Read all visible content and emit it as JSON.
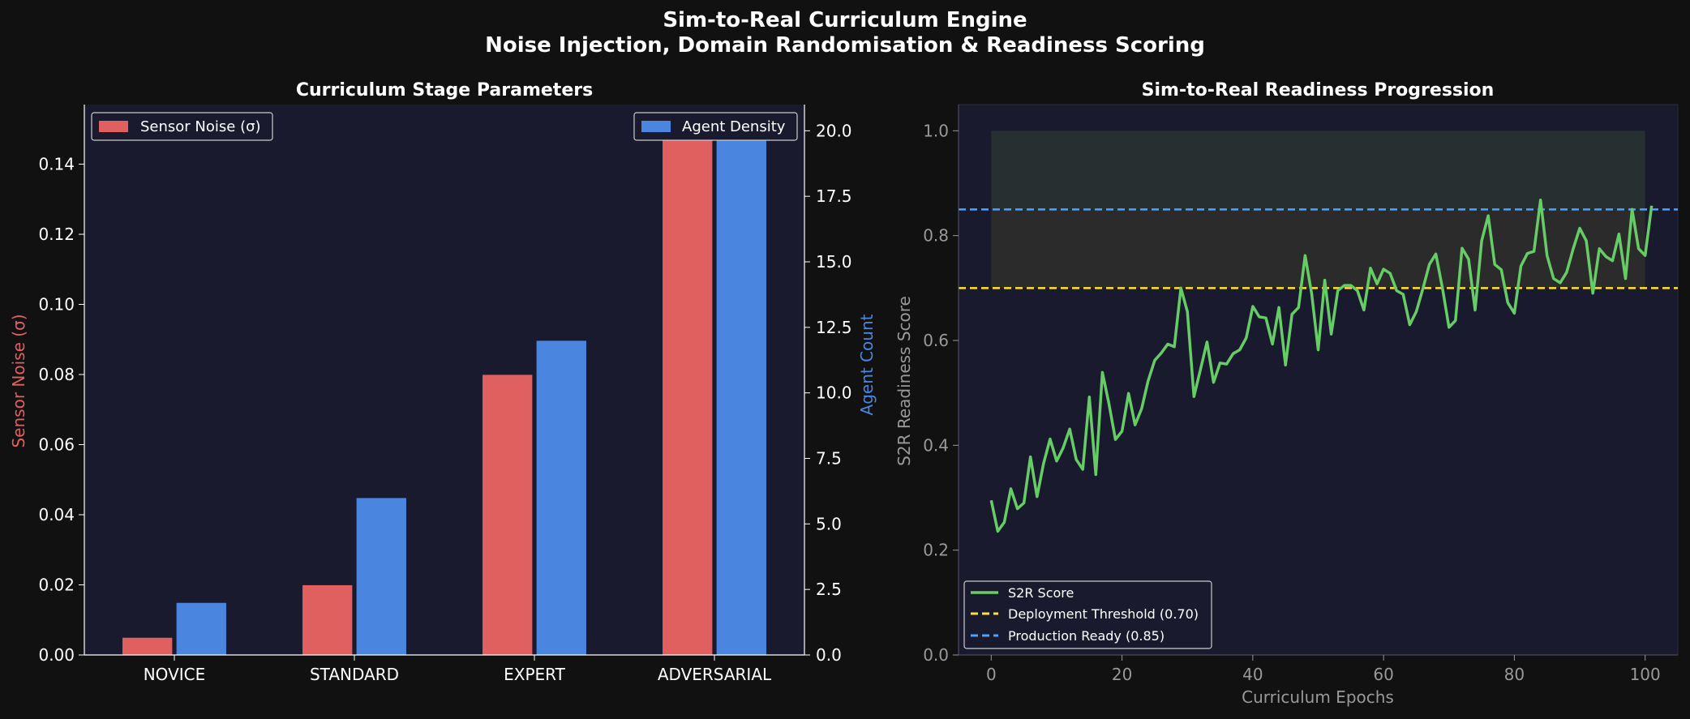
{
  "figure": {
    "title_line1": "Sim-to-Real Curriculum Engine",
    "title_line2": "Noise Injection, Domain Randomisation & Readiness Scoring"
  },
  "colors": {
    "background": "#111111",
    "panel": "#1a1a2e",
    "noise": "#e06060",
    "density": "#4a86e0",
    "score": "#66cc66",
    "deploy": "#ffe033",
    "production": "#4aa3ff"
  },
  "chart_data": [
    {
      "type": "bar",
      "title": "Curriculum Stage Parameters",
      "categories": [
        "NOVICE",
        "STANDARD",
        "EXPERT",
        "ADVERSARIAL"
      ],
      "series": [
        {
          "name": "Sensor Noise (σ)",
          "axis": "left",
          "values": [
            0.005,
            0.02,
            0.08,
            0.15
          ]
        },
        {
          "name": "Agent Density",
          "axis": "right",
          "values": [
            2,
            6,
            12,
            20
          ]
        }
      ],
      "ylabel": "Sensor Noise (σ)",
      "ylabel_right": "Agent Count",
      "ylim": [
        0,
        0.157
      ],
      "ylim_right": [
        0,
        21
      ],
      "yticks": [
        "0.00",
        "0.02",
        "0.04",
        "0.06",
        "0.08",
        "0.10",
        "0.12",
        "0.14"
      ],
      "yticks_right": [
        "0.0",
        "2.5",
        "5.0",
        "7.5",
        "10.0",
        "12.5",
        "15.0",
        "17.5",
        "20.0"
      ],
      "legend_left": "top-left",
      "legend_right": "top-right"
    },
    {
      "type": "line",
      "title": "Sim-to-Real Readiness Progression",
      "xlabel": "Curriculum Epochs",
      "ylabel": "S2R Readiness Score",
      "xlim": [
        -5,
        105
      ],
      "ylim": [
        0,
        1.05
      ],
      "xticks": [
        "0",
        "20",
        "40",
        "60",
        "80",
        "100"
      ],
      "yticks": [
        "0.0",
        "0.2",
        "0.4",
        "0.6",
        "0.8",
        "1.0"
      ],
      "series": [
        {
          "name": "S2R Score",
          "x_start": 0,
          "x_step": 1,
          "values": [
            0.295,
            0.236,
            0.253,
            0.317,
            0.279,
            0.29,
            0.378,
            0.302,
            0.365,
            0.412,
            0.37,
            0.395,
            0.431,
            0.373,
            0.354,
            0.492,
            0.344,
            0.539,
            0.479,
            0.411,
            0.427,
            0.499,
            0.439,
            0.47,
            0.523,
            0.562,
            0.576,
            0.593,
            0.588,
            0.7,
            0.655,
            0.493,
            0.545,
            0.597,
            0.52,
            0.557,
            0.555,
            0.575,
            0.582,
            0.605,
            0.665,
            0.645,
            0.643,
            0.593,
            0.663,
            0.553,
            0.65,
            0.663,
            0.762,
            0.69,
            0.582,
            0.715,
            0.612,
            0.695,
            0.705,
            0.705,
            0.695,
            0.658,
            0.738,
            0.708,
            0.736,
            0.728,
            0.695,
            0.688,
            0.63,
            0.655,
            0.698,
            0.745,
            0.765,
            0.7,
            0.625,
            0.638,
            0.776,
            0.755,
            0.658,
            0.79,
            0.838,
            0.745,
            0.735,
            0.672,
            0.652,
            0.742,
            0.766,
            0.77,
            0.868,
            0.762,
            0.718,
            0.71,
            0.73,
            0.775,
            0.814,
            0.79,
            0.69,
            0.775,
            0.76,
            0.752,
            0.803,
            0.718,
            0.85,
            0.775,
            0.762,
            0.857
          ]
        },
        {
          "name": "Deployment Threshold (0.70)",
          "y": 0.7,
          "style": "dashed"
        },
        {
          "name": "Production Ready (0.85)",
          "y": 0.85,
          "style": "dashed"
        }
      ],
      "shaded_band": {
        "x": [
          0,
          100
        ],
        "y": [
          0.7,
          1.0
        ]
      },
      "legend": "bottom-left"
    }
  ]
}
